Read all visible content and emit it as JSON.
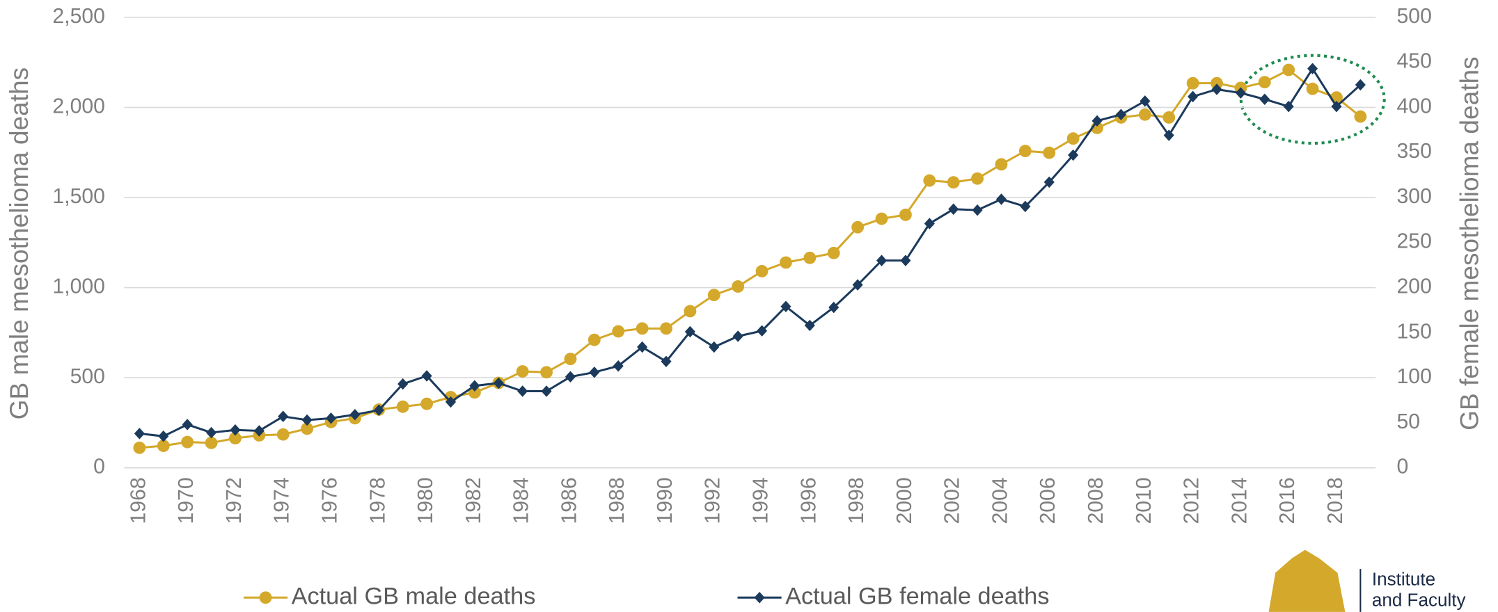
{
  "chart_data": {
    "type": "line",
    "categories": [
      "1968",
      null,
      "1970",
      null,
      "1972",
      null,
      "1974",
      null,
      "1976",
      null,
      "1978",
      null,
      "1980",
      null,
      "1982",
      null,
      "1984",
      null,
      "1986",
      null,
      "1988",
      null,
      "1990",
      null,
      "1992",
      null,
      "1994",
      null,
      "1996",
      null,
      "1998",
      null,
      "2000",
      null,
      "2002",
      null,
      "2004",
      null,
      "2006",
      null,
      "2008",
      null,
      "2010",
      null,
      "2012",
      null,
      "2014",
      null,
      "2016",
      null,
      "2018",
      null
    ],
    "ylabel": "GB male mesothelioma deaths",
    "y2label": "GB female mesothelioma deaths",
    "ylim": [
      0,
      2500
    ],
    "yticks": [
      0,
      {
        "value": 500,
        "label": "500"
      },
      {
        "value": 1000,
        "label": "1,000"
      },
      {
        "value": 1500,
        "label": "1,500"
      },
      {
        "value": 2000,
        "label": "2,000"
      },
      {
        "value": 2500,
        "label": "2,500"
      }
    ],
    "y2lim": [
      0,
      500
    ],
    "y2ticks": [
      0,
      50,
      100,
      150,
      200,
      250,
      300,
      350,
      400,
      450,
      500
    ],
    "grid": true,
    "legend": "bottom",
    "series": [
      {
        "name": "Actual GB male deaths",
        "color": "#d4a82a",
        "marker": "circle",
        "values": [
          111,
          122,
          143,
          138,
          164,
          180,
          185,
          217,
          254,
          275,
          323,
          339,
          355,
          392,
          418,
          471,
          535,
          530,
          604,
          710,
          757,
          773,
          773,
          869,
          959,
          1006,
          1091,
          1139,
          1165,
          1192,
          1335,
          1382,
          1404,
          1594,
          1584,
          1605,
          1684,
          1758,
          1748,
          1827,
          1886,
          1944,
          1960,
          1944,
          2134,
          2134,
          2108,
          2140,
          2208,
          2103,
          2055,
          1949
        ]
      },
      {
        "name": "Actual GB female deaths",
        "color": "#1b3a5c",
        "marker": "diamond",
        "axis": "y2",
        "values": [
          38,
          35,
          48,
          39,
          42,
          41,
          57,
          53,
          55,
          59,
          64,
          93,
          102,
          73,
          91,
          94,
          85,
          85,
          101,
          106,
          113,
          134,
          118,
          151,
          134,
          146,
          152,
          179,
          158,
          178,
          203,
          230,
          230,
          271,
          287,
          286,
          298,
          290,
          317,
          347,
          385,
          392,
          407,
          369,
          412,
          420,
          416,
          409,
          401,
          443,
          401,
          425
        ]
      }
    ]
  },
  "logo": {
    "line1": "Institute",
    "line2": "and Faculty"
  }
}
